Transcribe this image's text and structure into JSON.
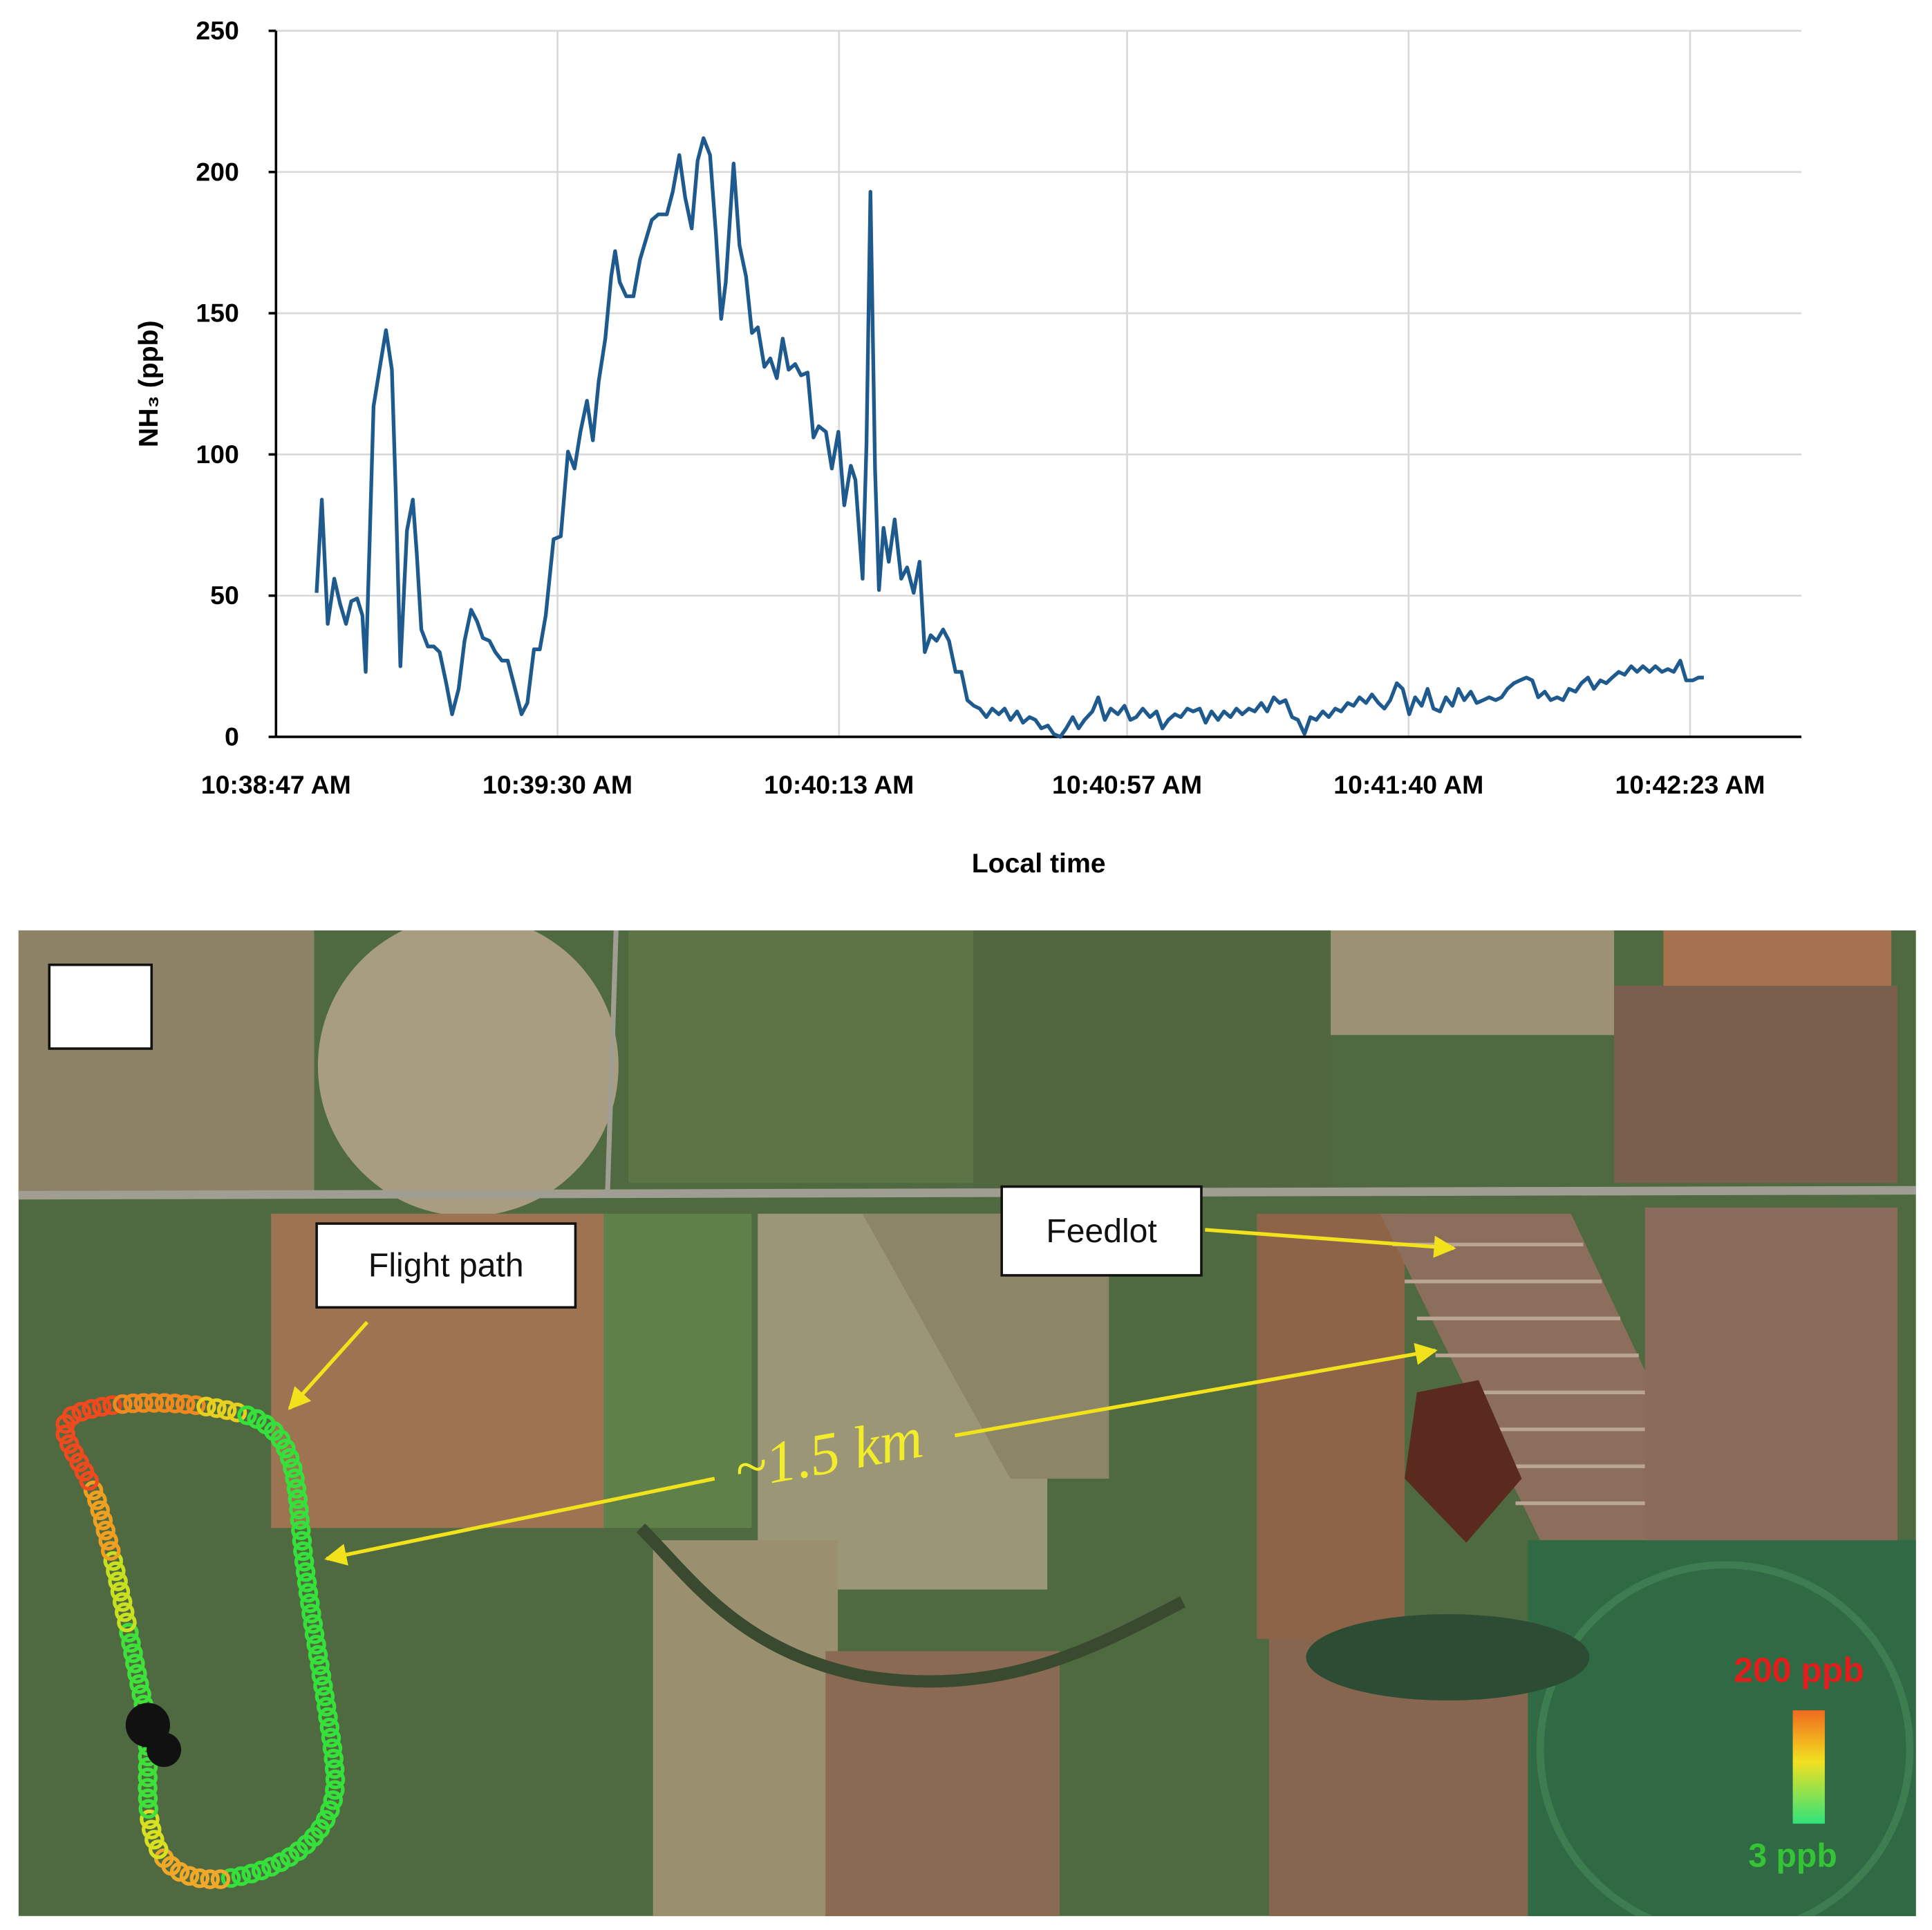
{
  "chart_data": {
    "type": "line",
    "ylabel": "NH₃ (ppb)",
    "xlabel": "Local time",
    "color": "#1f5a8f",
    "grid": true,
    "xlim": [
      38327,
      38560
    ],
    "ylim": [
      0,
      250
    ],
    "yticks": [
      0,
      50,
      100,
      150,
      200,
      250
    ],
    "xticks": [
      {
        "value": 38327,
        "label": "10:38:47 AM"
      },
      {
        "value": 38370,
        "label": "10:39:30 AM"
      },
      {
        "value": 38413,
        "label": "10:40:13 AM"
      },
      {
        "value": 38457,
        "label": "10:40:57 AM"
      },
      {
        "value": 38500,
        "label": "10:41:40 AM"
      },
      {
        "value": 38543,
        "label": "10:42:23 AM"
      }
    ],
    "x": [
      38333.2,
      38334,
      38334.9,
      38335.9,
      38336.8,
      38337.7,
      38338.5,
      38339.4,
      38340.2,
      38340.7,
      38341.3,
      38341.9,
      38342.8,
      38343.8,
      38344.7,
      38345.3,
      38346,
      38347,
      38347.9,
      38348.5,
      38349.2,
      38350.2,
      38351.1,
      38352,
      38353,
      38353.9,
      38354.9,
      38355.8,
      38356.8,
      38357.7,
      38358.6,
      38359.6,
      38360.5,
      38361.5,
      38362.4,
      38363.3,
      38364.5,
      38365.4,
      38366.4,
      38367.3,
      38368.2,
      38369.4,
      38370.5,
      38371.6,
      38372.6,
      38373.5,
      38374.5,
      38375.4,
      38376.3,
      38377.3,
      38378.2,
      38378.8,
      38379.5,
      38380.5,
      38381.6,
      38382.6,
      38383.5,
      38384.4,
      38385.4,
      38386.7,
      38387.6,
      38388.6,
      38389.5,
      38390.5,
      38391.4,
      38392.3,
      38393.3,
      38394.2,
      38395,
      38395.7,
      38396.9,
      38397.8,
      38398.8,
      38399.7,
      38400.6,
      38401.6,
      38402.5,
      38403.5,
      38404.4,
      38405.3,
      38406.3,
      38407.2,
      38408.2,
      38409.1,
      38409.9,
      38411,
      38411.9,
      38412.9,
      38413.8,
      38414.8,
      38415.5,
      38416.6,
      38417.2,
      38417.8,
      38418.5,
      38419.1,
      38419.8,
      38420.6,
      38421.5,
      38422.5,
      38423.4,
      38424.4,
      38425.3,
      38426.1,
      38427,
      38427.9,
      38428.9,
      38429.8,
      38430.8,
      38431.7,
      38432.6,
      38433.6,
      38434.5,
      38435.5,
      38436.4,
      38437.4,
      38438.3,
      38439.2,
      38440.2,
      38441.1,
      38442.1,
      38443,
      38443.9,
      38444.9,
      38445.8,
      38446.8,
      38447.7,
      38448.7,
      38449.6,
      38450.5,
      38451.7,
      38452.6,
      38453.6,
      38454.5,
      38455.6,
      38456.6,
      38457.5,
      38458.4,
      38459.4,
      38460.5,
      38461.5,
      38462.4,
      38463.3,
      38464.3,
      38465.2,
      38466.2,
      38467.1,
      38468.1,
      38469,
      38469.9,
      38470.9,
      38471.8,
      38472.8,
      38473.7,
      38474.6,
      38475.6,
      38476.5,
      38477.5,
      38478.4,
      38479.4,
      38480.3,
      38481.2,
      38482.2,
      38483.1,
      38484.1,
      38485,
      38485.9,
      38486.9,
      38487.8,
      38488.8,
      38489.7,
      38490.7,
      38491.6,
      38492.5,
      38493.5,
      38494.4,
      38495.4,
      38496.3,
      38497.2,
      38498.2,
      38499.1,
      38500.1,
      38501,
      38502,
      38502.9,
      38503.8,
      38504.8,
      38505.7,
      38506.7,
      38507.6,
      38508.5,
      38509.5,
      38510.4,
      38511.4,
      38512.3,
      38513.3,
      38514.2,
      38515.1,
      38516.1,
      38517,
      38518,
      38518.9,
      38519.8,
      38520.8,
      38521.7,
      38522.7,
      38523.6,
      38524.5,
      38525.5,
      38526.4,
      38527.4,
      38528.3,
      38529.3,
      38530.2,
      38531.1,
      38532.1,
      38533,
      38534,
      38534.9,
      38535.8,
      38536.8,
      38537.7,
      38538.7,
      38539.6,
      38540.5,
      38541.5,
      38542.4,
      38543.4,
      38544.3,
      38545.1
    ],
    "values": [
      51,
      84,
      40,
      56,
      47,
      40,
      48,
      49,
      43,
      23,
      69,
      117,
      130,
      144,
      130,
      86,
      25,
      73,
      84,
      65,
      38,
      32,
      32,
      30,
      19,
      8,
      17,
      34,
      45,
      41,
      35,
      34,
      30,
      27,
      27,
      19,
      8,
      12,
      31,
      31,
      43,
      70,
      71,
      101,
      95,
      108,
      119,
      105,
      126,
      141,
      163,
      172,
      161,
      156,
      156,
      169,
      176,
      183,
      185,
      185,
      193,
      206,
      191,
      180,
      204,
      212,
      206,
      178,
      148,
      161,
      203,
      174,
      163,
      143,
      145,
      131,
      134,
      127,
      141,
      130,
      132,
      128,
      129,
      106,
      110,
      108,
      95,
      108,
      82,
      96,
      91,
      56,
      104,
      193,
      95,
      52,
      74,
      62,
      77,
      56,
      60,
      51,
      62,
      30,
      36,
      34,
      38,
      34,
      23,
      23,
      13,
      11,
      10,
      7,
      10,
      8,
      10,
      6,
      9,
      5,
      7,
      6,
      3,
      4,
      1,
      0,
      3,
      7,
      3,
      6,
      9,
      14,
      6,
      10,
      8,
      11,
      6,
      7,
      10,
      7,
      9,
      3,
      6,
      8,
      7,
      10,
      9,
      10,
      5,
      9,
      6,
      9,
      7,
      10,
      8,
      10,
      9,
      12,
      9,
      14,
      12,
      13,
      7,
      6,
      1,
      7,
      6,
      9,
      7,
      10,
      9,
      12,
      11,
      14,
      12,
      15,
      12,
      10,
      13,
      19,
      17,
      8,
      14,
      11,
      17,
      10,
      9,
      14,
      11,
      17,
      13,
      16,
      12,
      13,
      14,
      13,
      14,
      17,
      19,
      20,
      21,
      20,
      14,
      16,
      13,
      14,
      13,
      17,
      16,
      19,
      21,
      17,
      20,
      19,
      21,
      23,
      22,
      25,
      23,
      25,
      23,
      25,
      23,
      24,
      23,
      27,
      20,
      20,
      21,
      21
    ]
  },
  "map": {
    "labels": {
      "flight_path": "Flight path",
      "feedlot": "Feedlot",
      "distance": "~1.5 km"
    },
    "colorbar": {
      "max_label": "200 ppb",
      "min_label": "3 ppb"
    }
  }
}
